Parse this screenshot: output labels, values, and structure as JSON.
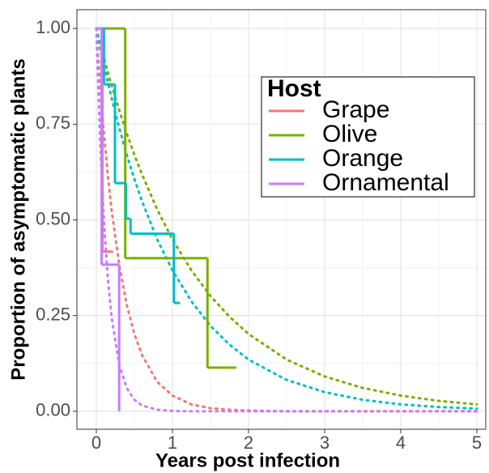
{
  "chart_data": {
    "type": "line",
    "xlabel": "Years post infection",
    "ylabel": "Proportion of asymptomatic plants",
    "legend_title": "Host",
    "legend_position": "top-right",
    "xlim": [
      -0.255,
      5.117
    ],
    "ylim": [
      -0.047,
      1.049
    ],
    "xticks": [
      0,
      1,
      2,
      3,
      4,
      5
    ],
    "yticks": [
      {
        "value": 0,
        "label": "0.00"
      },
      {
        "value": 0.25,
        "label": "0.25"
      },
      {
        "value": 0.5,
        "label": "0.50"
      },
      {
        "value": 0.75,
        "label": "0.75"
      },
      {
        "value": 1,
        "label": "1.00"
      }
    ],
    "grid": true,
    "fit_x": [
      0,
      0.05,
      0.1,
      0.15,
      0.2,
      0.3,
      0.4,
      0.5,
      0.6,
      0.8,
      1,
      1.25,
      1.5,
      1.75,
      2,
      2.5,
      3,
      3.5,
      4,
      4.5,
      5
    ],
    "series": [
      {
        "name": "Grape",
        "color": "#F8766D",
        "x": [
          0,
          0.08,
          0.22
        ],
        "values": [
          1,
          0.417,
          0.417
        ],
        "fit_values": [
          1,
          0.852,
          0.726,
          0.619,
          0.527,
          0.383,
          0.278,
          0.202,
          0.147,
          0.077,
          0.041,
          0.018,
          0.008,
          0.004,
          0.002,
          0,
          0,
          0,
          0,
          0,
          0
        ]
      },
      {
        "name": "Olive",
        "color": "#7CAE00",
        "x": [
          0,
          0.38,
          1.46,
          1.84
        ],
        "values": [
          1,
          0.4,
          0.114,
          0.114
        ],
        "fit_values": [
          1,
          0.961,
          0.923,
          0.887,
          0.852,
          0.787,
          0.726,
          0.67,
          0.619,
          0.527,
          0.449,
          0.368,
          0.301,
          0.247,
          0.202,
          0.135,
          0.091,
          0.061,
          0.041,
          0.027,
          0.018
        ]
      },
      {
        "name": "Orange",
        "color": "#00BFC4",
        "x": [
          0,
          0.1,
          0.245,
          0.39,
          0.45,
          1.02,
          1.1
        ],
        "values": [
          1,
          0.854,
          0.596,
          0.503,
          0.464,
          0.283,
          0.283
        ],
        "fit_values": [
          1,
          0.951,
          0.905,
          0.861,
          0.819,
          0.741,
          0.67,
          0.607,
          0.549,
          0.449,
          0.368,
          0.287,
          0.223,
          0.174,
          0.135,
          0.082,
          0.05,
          0.03,
          0.018,
          0.011,
          0.007
        ]
      },
      {
        "name": "Ornamental",
        "color": "#C77CFF",
        "x": [
          0,
          0.07,
          0.3
        ],
        "values": [
          1,
          0.383,
          0
        ],
        "fit_values": [
          1,
          0.705,
          0.497,
          0.35,
          0.247,
          0.122,
          0.061,
          0.03,
          0.015,
          0.004,
          0.001,
          0,
          0,
          0,
          0,
          0,
          0,
          0,
          0,
          0,
          0
        ]
      }
    ]
  }
}
